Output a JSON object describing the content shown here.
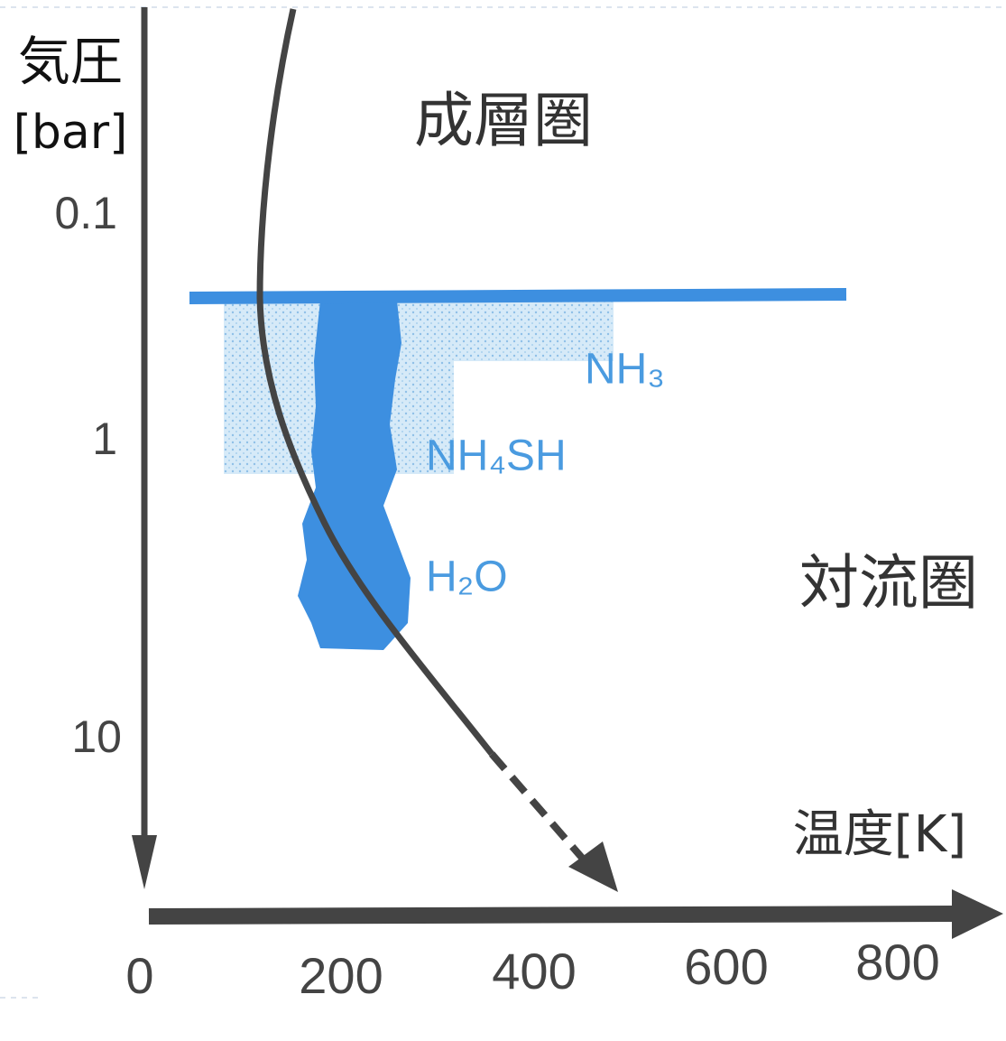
{
  "axis_y": {
    "title": "気圧",
    "unit": "[bar]",
    "labels": [
      "0.1",
      "1",
      "10"
    ]
  },
  "axis_x": {
    "title": "温度[K]",
    "labels": [
      "0",
      "200",
      "400",
      "600",
      "800"
    ]
  },
  "regions": {
    "upper": "成層圏",
    "lower": "対流圏"
  },
  "clouds": [
    "NH₃",
    "NH₄SH",
    "H₂O"
  ]
}
